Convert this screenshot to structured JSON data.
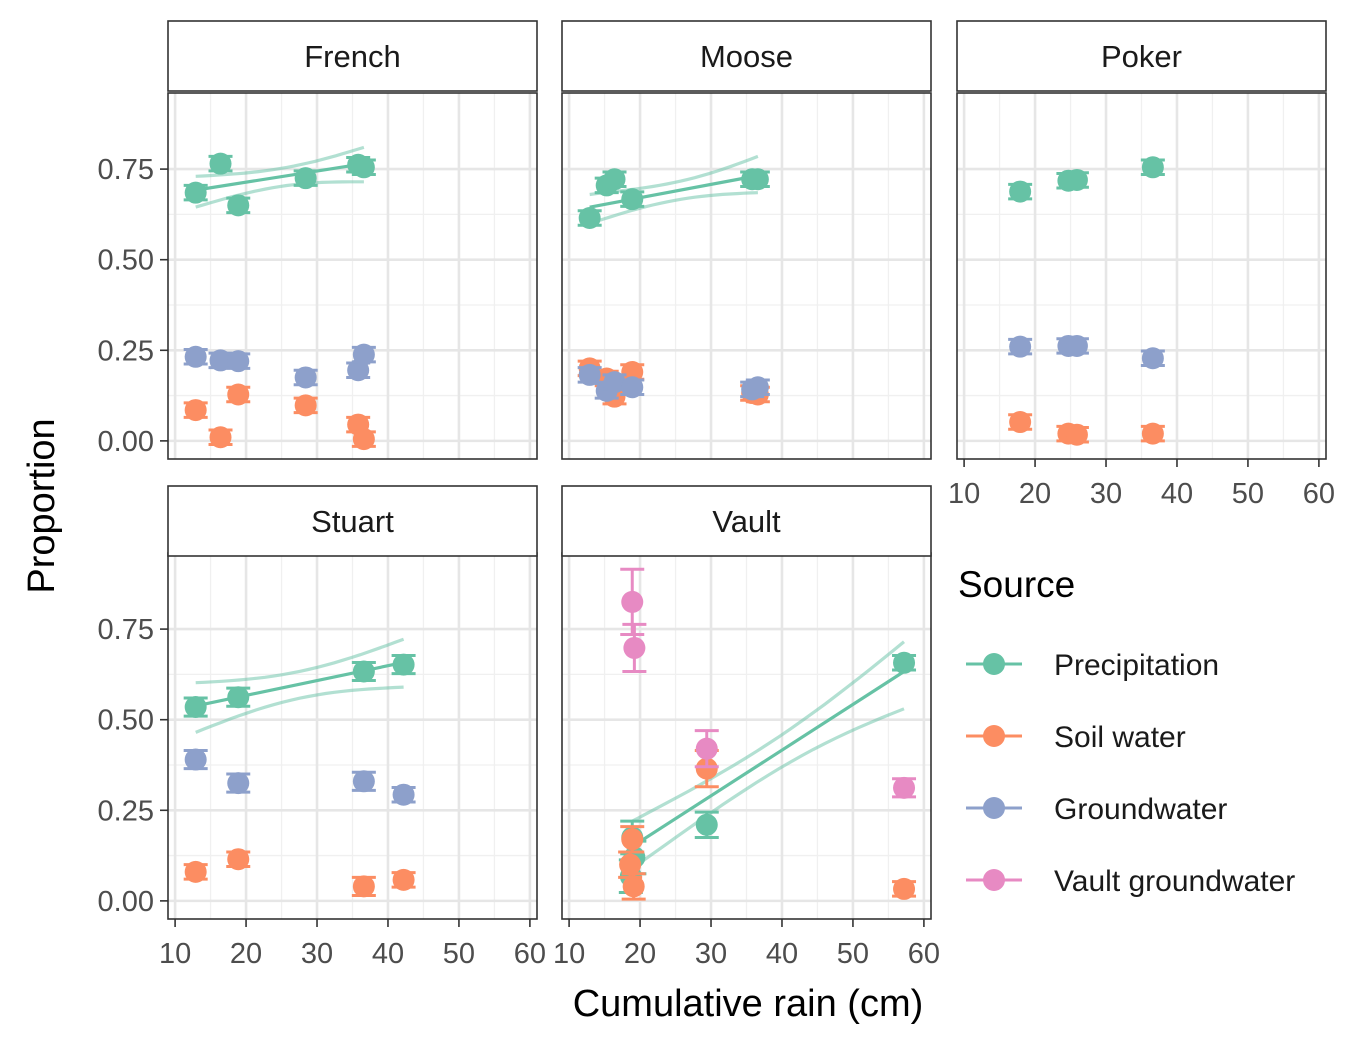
{
  "chart_data": {
    "type": "scatter",
    "xlabel": "Cumulative rain (cm)",
    "ylabel": "Proportion",
    "xlim": [
      9,
      61
    ],
    "ylim": [
      -0.05,
      0.96
    ],
    "x_ticks": [
      10,
      20,
      30,
      40,
      50,
      60
    ],
    "y_ticks": [
      0.0,
      0.25,
      0.5,
      0.75
    ],
    "y_tick_labels": [
      "0.00",
      "0.25",
      "0.50",
      "0.75"
    ],
    "grid": true,
    "legend": {
      "title": "Source",
      "placement": "right",
      "entries": [
        {
          "label": "Precipitation",
          "color": "#66c2a5"
        },
        {
          "label": "Soil water",
          "color": "#fc8d62"
        },
        {
          "label": "Groundwater",
          "color": "#8da0cb"
        },
        {
          "label": "Vault groundwater",
          "color": "#e78ac3"
        }
      ]
    },
    "panels": [
      {
        "name": "French",
        "series": [
          {
            "name": "Precipitation",
            "points": [
              [
                12.9,
                0.685,
                0.02
              ],
              [
                16.4,
                0.765,
                0.02
              ],
              [
                18.9,
                0.65,
                0.02
              ],
              [
                28.4,
                0.725,
                0.02
              ],
              [
                35.8,
                0.762,
                0.02
              ],
              [
                36.6,
                0.755,
                0.02
              ]
            ]
          },
          {
            "name": "Soil water",
            "points": [
              [
                12.9,
                0.085,
                0.02
              ],
              [
                16.4,
                0.01,
                0.02
              ],
              [
                18.9,
                0.128,
                0.02
              ],
              [
                28.4,
                0.098,
                0.02
              ],
              [
                35.8,
                0.045,
                0.02
              ],
              [
                36.6,
                0.005,
                0.02
              ]
            ]
          },
          {
            "name": "Groundwater",
            "points": [
              [
                12.9,
                0.232,
                0.02
              ],
              [
                16.4,
                0.222,
                0.02
              ],
              [
                18.9,
                0.22,
                0.02
              ],
              [
                28.4,
                0.175,
                0.02
              ],
              [
                35.8,
                0.195,
                0.02
              ],
              [
                36.6,
                0.238,
                0.02
              ]
            ]
          }
        ],
        "fit": {
          "series": "Precipitation",
          "x": [
            12.9,
            36.6
          ],
          "y": [
            0.692,
            0.765
          ],
          "band_lower": [
            0.645,
            0.715
          ],
          "band_upper": [
            0.73,
            0.81
          ]
        }
      },
      {
        "name": "Moose",
        "series": [
          {
            "name": "Precipitation",
            "points": [
              [
                12.9,
                0.615,
                0.02
              ],
              [
                15.3,
                0.705,
                0.02
              ],
              [
                16.4,
                0.722,
                0.02
              ],
              [
                18.9,
                0.667,
                0.02
              ],
              [
                35.8,
                0.722,
                0.02
              ],
              [
                36.6,
                0.722,
                0.02
              ]
            ]
          },
          {
            "name": "Soil water",
            "points": [
              [
                12.9,
                0.2,
                0.02
              ],
              [
                15.3,
                0.172,
                0.02
              ],
              [
                16.4,
                0.122,
                0.02
              ],
              [
                18.9,
                0.19,
                0.02
              ],
              [
                35.8,
                0.132,
                0.02
              ],
              [
                36.6,
                0.128,
                0.02
              ]
            ]
          },
          {
            "name": "Groundwater",
            "points": [
              [
                12.9,
                0.182,
                0.02
              ],
              [
                15.3,
                0.138,
                0.02
              ],
              [
                16.4,
                0.162,
                0.02
              ],
              [
                18.9,
                0.148,
                0.02
              ],
              [
                35.8,
                0.142,
                0.02
              ],
              [
                36.6,
                0.148,
                0.02
              ]
            ]
          }
        ],
        "fit": {
          "series": "Precipitation",
          "x": [
            12.9,
            36.6
          ],
          "y": [
            0.645,
            0.732
          ],
          "band_lower": [
            0.6,
            0.685
          ],
          "band_upper": [
            0.68,
            0.785
          ]
        }
      },
      {
        "name": "Poker",
        "series": [
          {
            "name": "Precipitation",
            "points": [
              [
                17.9,
                0.688,
                0.02
              ],
              [
                24.7,
                0.718,
                0.02
              ],
              [
                25.9,
                0.72,
                0.02
              ],
              [
                36.6,
                0.755,
                0.02
              ]
            ]
          },
          {
            "name": "Soil water",
            "points": [
              [
                17.9,
                0.052,
                0.02
              ],
              [
                24.7,
                0.02,
                0.02
              ],
              [
                25.9,
                0.017,
                0.02
              ],
              [
                36.6,
                0.02,
                0.02
              ]
            ]
          },
          {
            "name": "Groundwater",
            "points": [
              [
                17.9,
                0.26,
                0.02
              ],
              [
                24.7,
                0.262,
                0.02
              ],
              [
                25.9,
                0.262,
                0.02
              ],
              [
                36.6,
                0.228,
                0.02
              ]
            ]
          }
        ],
        "fit": null
      },
      {
        "name": "Stuart",
        "series": [
          {
            "name": "Precipitation",
            "points": [
              [
                12.9,
                0.535,
                0.025
              ],
              [
                18.9,
                0.562,
                0.025
              ],
              [
                36.6,
                0.633,
                0.025
              ],
              [
                42.2,
                0.652,
                0.025
              ]
            ]
          },
          {
            "name": "Soil water",
            "points": [
              [
                12.9,
                0.08,
                0.02
              ],
              [
                18.9,
                0.115,
                0.02
              ],
              [
                36.6,
                0.04,
                0.025
              ],
              [
                42.2,
                0.058,
                0.02
              ]
            ]
          },
          {
            "name": "Groundwater",
            "points": [
              [
                12.9,
                0.39,
                0.025
              ],
              [
                18.9,
                0.325,
                0.025
              ],
              [
                36.6,
                0.33,
                0.025
              ],
              [
                42.2,
                0.293,
                0.02
              ]
            ]
          }
        ],
        "fit": {
          "series": "Precipitation",
          "x": [
            12.9,
            42.2
          ],
          "y": [
            0.538,
            0.658
          ],
          "band_lower": [
            0.465,
            0.59
          ],
          "band_upper": [
            0.602,
            0.722
          ]
        }
      },
      {
        "name": "Vault",
        "series": [
          {
            "name": "Precipitation",
            "points": [
              [
                18.9,
                0.175,
                0.045
              ],
              [
                19.2,
                0.12,
                0.045
              ],
              [
                18.7,
                0.068,
                0.045
              ],
              [
                29.4,
                0.21,
                0.035
              ],
              [
                57.2,
                0.657,
                0.02
              ]
            ]
          },
          {
            "name": "Soil water",
            "points": [
              [
                18.9,
                0.17,
                0.035
              ],
              [
                18.6,
                0.1,
                0.035
              ],
              [
                19.1,
                0.04,
                0.035
              ],
              [
                29.4,
                0.365,
                0.05
              ],
              [
                57.2,
                0.033,
                0.02
              ]
            ]
          },
          {
            "name": "Vault groundwater",
            "points": [
              [
                18.9,
                0.825,
                0.09
              ],
              [
                19.2,
                0.698,
                0.065
              ],
              [
                29.4,
                0.42,
                0.05
              ],
              [
                57.2,
                0.312,
                0.025
              ]
            ]
          }
        ],
        "fit": {
          "series": "Precipitation",
          "x": [
            18.9,
            57.2
          ],
          "y": [
            0.15,
            0.633
          ],
          "band_lower": [
            0.09,
            0.53
          ],
          "band_upper": [
            0.22,
            0.715
          ]
        }
      }
    ]
  }
}
